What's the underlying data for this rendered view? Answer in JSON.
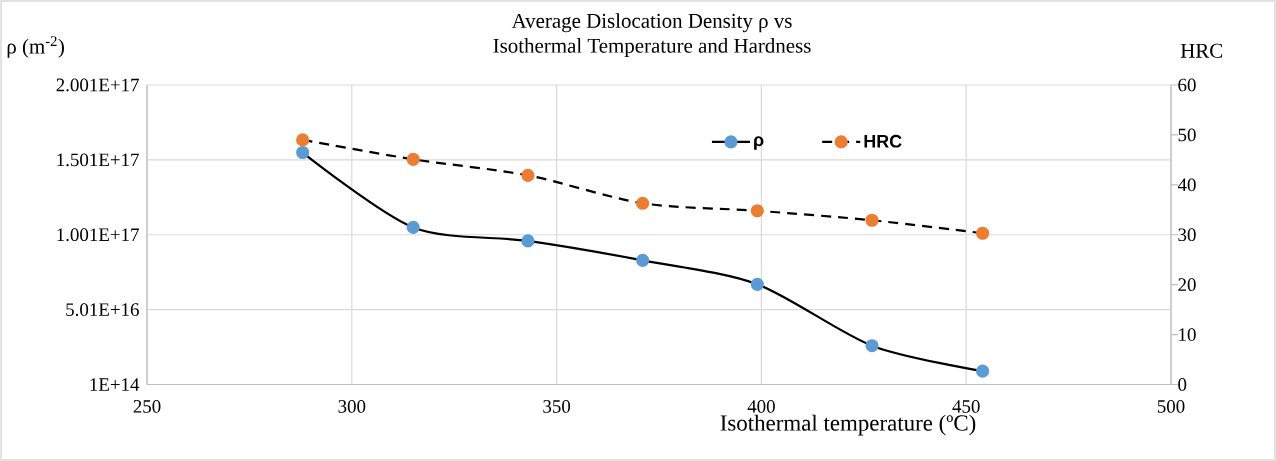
{
  "chart_data": {
    "type": "line",
    "title": "Average Dislocation Density ρ vs\nIsothermal Temperature and Hardness",
    "xlabel": "Isothermal temperature (ºC)",
    "ylabel": "ρ (m$^{-2}$)",
    "y2label": "HRC",
    "x": [
      288,
      315,
      343,
      371,
      399,
      427,
      454
    ],
    "series": [
      {
        "name": "ρ",
        "color": "#5b9bd5",
        "line_style": "solid",
        "values": [
          1.55e+17,
          1.05e+17,
          9.6e+16,
          8.3e+16,
          6.7e+16,
          2.6e+16,
          9000000000000000.0
        ]
      },
      {
        "name": "HRC",
        "color": "#ed7d31",
        "line_style": "dashed",
        "axis": "y2",
        "values": [
          49.0,
          45.1,
          41.9,
          36.3,
          34.8,
          32.9,
          30.3
        ]
      }
    ],
    "xlim": [
      250,
      500
    ],
    "xticks": [
      250,
      300,
      350,
      400,
      450,
      500
    ],
    "ylim": [
      100000000000000.0,
      2.001e+17
    ],
    "yticks": [
      {
        "value": 100000000000000.0,
        "label": "1E+14"
      },
      {
        "value": 5.01e+16,
        "label": "5.01E+16"
      },
      {
        "value": 1.001e+17,
        "label": "1.001E+17"
      },
      {
        "value": 1.501e+17,
        "label": "1.501E+17"
      },
      {
        "value": 2.001e+17,
        "label": "2.001E+17"
      }
    ],
    "y2lim": [
      0,
      60
    ],
    "y2ticks": [
      0,
      10,
      20,
      30,
      40,
      50,
      60
    ],
    "grid": true,
    "legend": "top",
    "marker": "circle"
  }
}
